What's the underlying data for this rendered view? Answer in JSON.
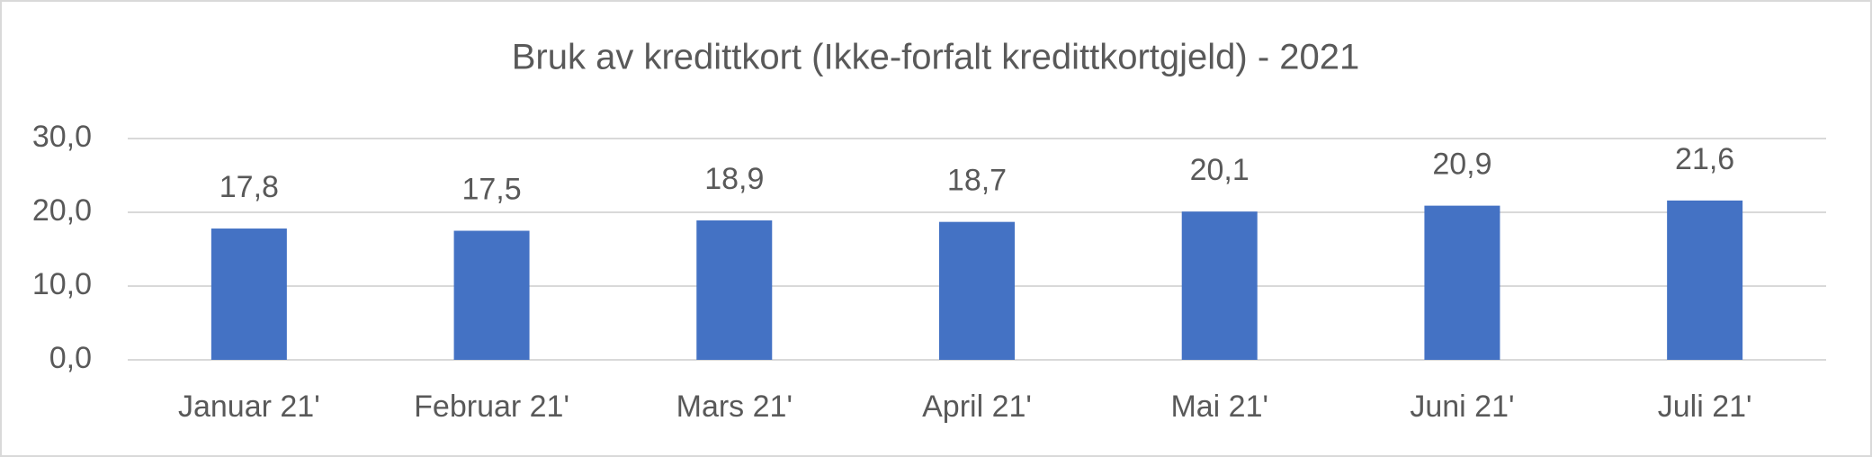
{
  "chart_data": {
    "type": "bar",
    "title": "Bruk av kredittkort (Ikke-forfalt kredittkortgjeld) - 2021",
    "categories": [
      "Januar 21'",
      "Februar 21'",
      "Mars 21'",
      "April 21'",
      "Mai 21'",
      "Juni 21'",
      "Juli 21'"
    ],
    "values": [
      17.8,
      17.5,
      18.9,
      18.7,
      20.1,
      20.9,
      21.6
    ],
    "value_labels": [
      "17,8",
      "17,5",
      "18,9",
      "18,7",
      "20,1",
      "20,9",
      "21,6"
    ],
    "color": "#4472c4",
    "ylim": [
      0,
      30
    ],
    "yticks": [
      {
        "value": 0,
        "label": "0,0"
      },
      {
        "value": 10,
        "label": "10,0"
      },
      {
        "value": 20,
        "label": "20,0"
      },
      {
        "value": 30,
        "label": "30,0"
      }
    ],
    "grid": true
  }
}
